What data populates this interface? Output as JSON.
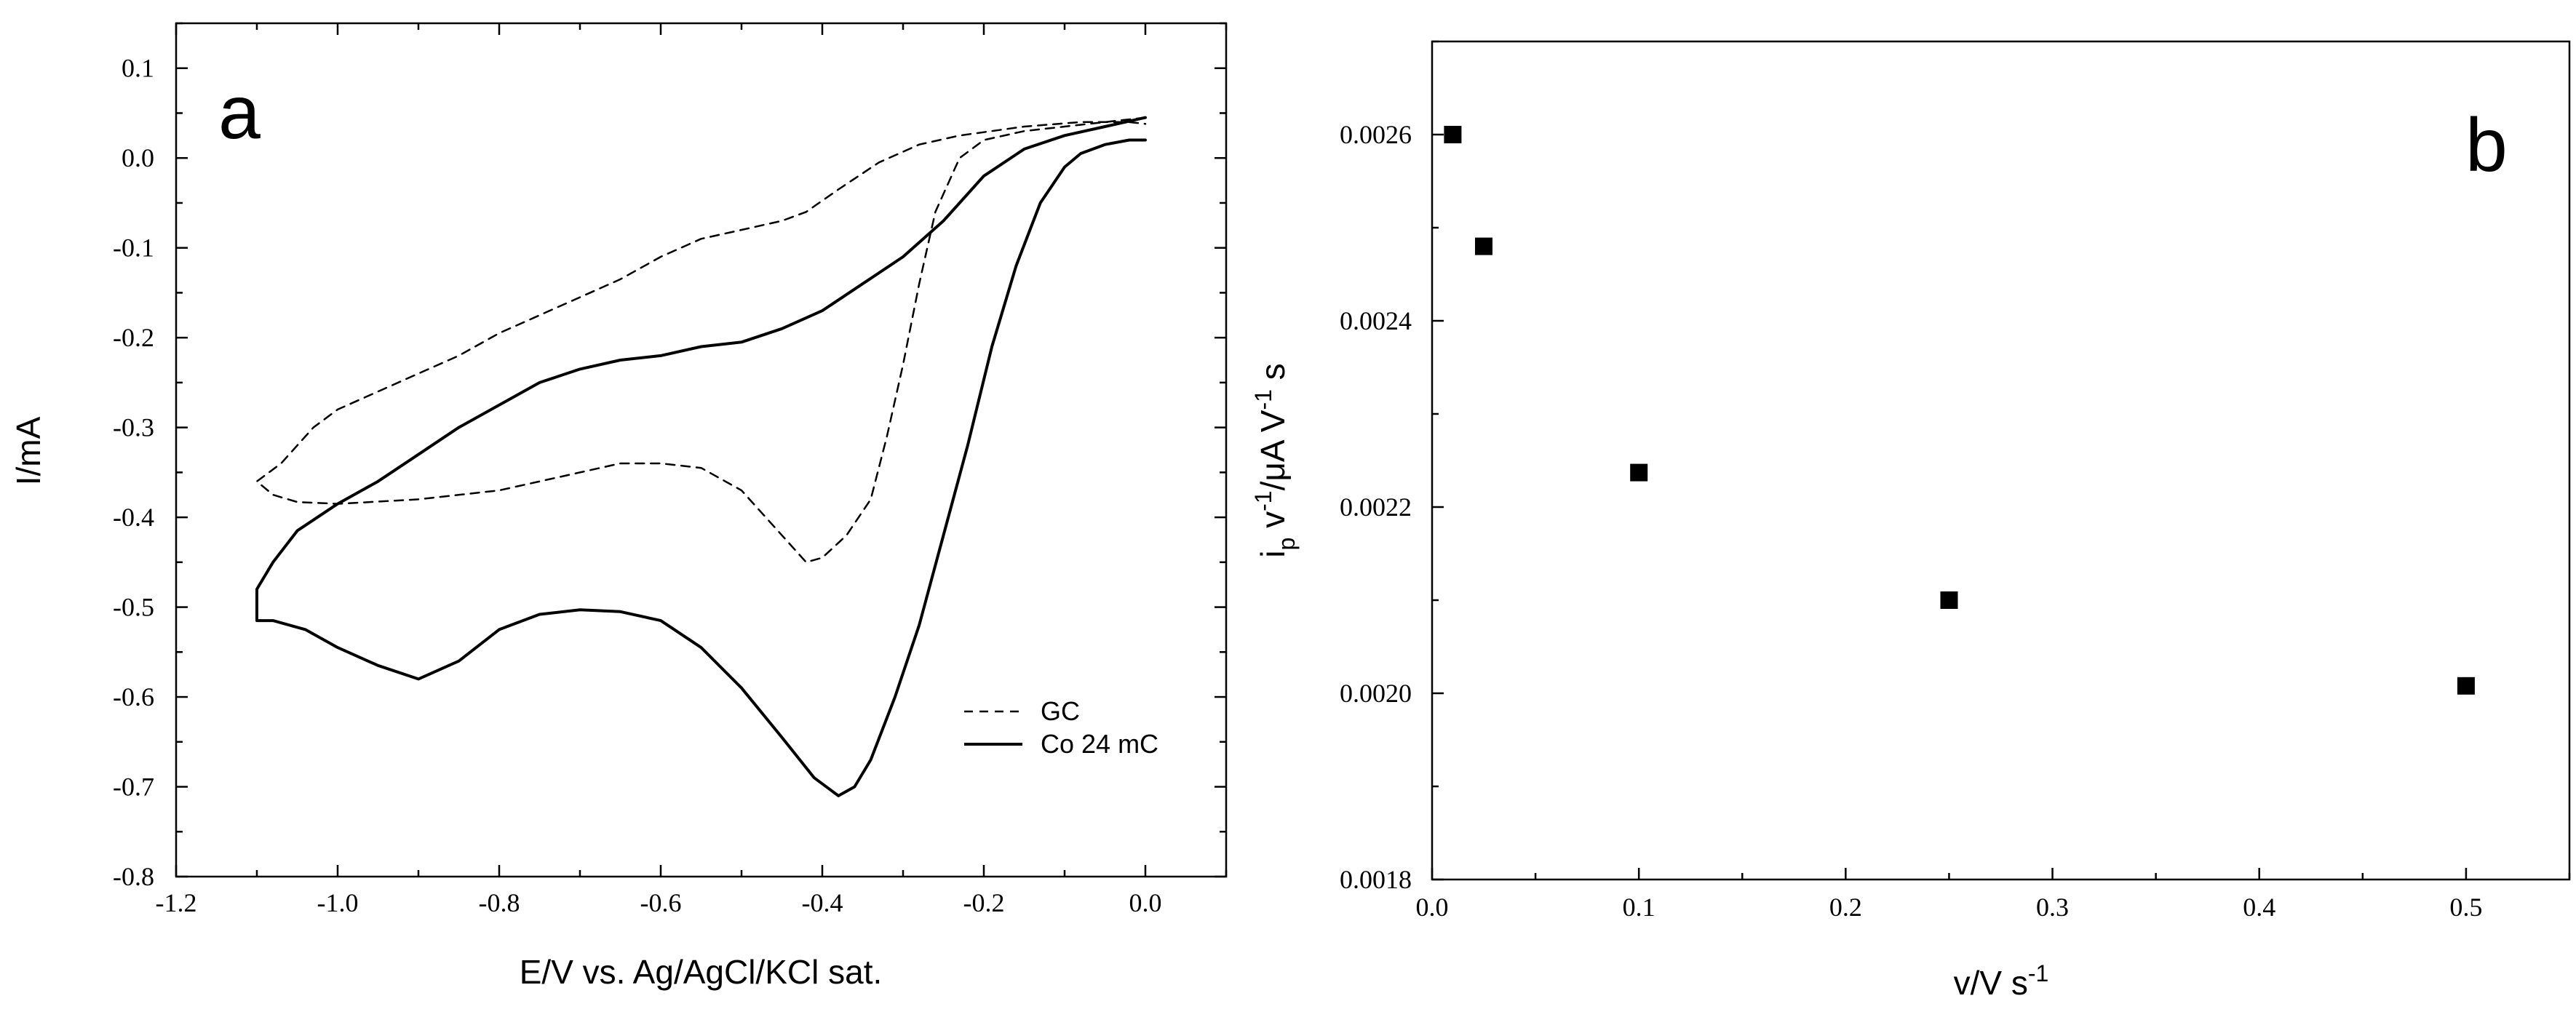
{
  "chart_data": [
    {
      "type": "line",
      "panel_label": "a",
      "xlabel": "E/V vs. Ag/AgCl/KCl sat.",
      "ylabel": "I/mA",
      "xlim": [
        -1.2,
        0.1
      ],
      "ylim": [
        -0.8,
        0.15
      ],
      "x_ticks": [
        -1.2,
        -1.0,
        -0.8,
        -0.6,
        -0.4,
        -0.2,
        0.0
      ],
      "x_tick_labels": [
        "-1.2",
        "-1.0",
        "-0.8",
        "-0.6",
        "-0.4",
        "-0.2",
        "0.0"
      ],
      "y_ticks": [
        -0.8,
        -0.7,
        -0.6,
        -0.5,
        -0.4,
        -0.3,
        -0.2,
        -0.1,
        0.0,
        0.1
      ],
      "y_tick_labels": [
        "-0.8",
        "-0.7",
        "-0.6",
        "-0.5",
        "-0.4",
        "-0.3",
        "-0.2",
        "-0.1",
        "0.0",
        "0.1"
      ],
      "legend": {
        "placement": "bottom-right",
        "entries": [
          "GC",
          "Co 24 mC"
        ]
      },
      "series": [
        {
          "name": "GC",
          "style": "dashed",
          "points": [
            [
              0.0,
              0.045
            ],
            [
              -0.05,
              0.04
            ],
            [
              -0.1,
              0.035
            ],
            [
              -0.15,
              0.03
            ],
            [
              -0.2,
              0.02
            ],
            [
              -0.23,
              0.0
            ],
            [
              -0.26,
              -0.06
            ],
            [
              -0.28,
              -0.14
            ],
            [
              -0.3,
              -0.23
            ],
            [
              -0.32,
              -0.31
            ],
            [
              -0.34,
              -0.38
            ],
            [
              -0.37,
              -0.42
            ],
            [
              -0.4,
              -0.445
            ],
            [
              -0.42,
              -0.45
            ],
            [
              -0.45,
              -0.42
            ],
            [
              -0.5,
              -0.37
            ],
            [
              -0.55,
              -0.345
            ],
            [
              -0.6,
              -0.34
            ],
            [
              -0.65,
              -0.34
            ],
            [
              -0.7,
              -0.35
            ],
            [
              -0.8,
              -0.37
            ],
            [
              -0.9,
              -0.38
            ],
            [
              -1.0,
              -0.385
            ],
            [
              -1.05,
              -0.383
            ],
            [
              -1.08,
              -0.375
            ],
            [
              -1.1,
              -0.36
            ],
            [
              -1.07,
              -0.34
            ],
            [
              -1.03,
              -0.3
            ],
            [
              -1.0,
              -0.28
            ],
            [
              -0.95,
              -0.26
            ],
            [
              -0.9,
              -0.24
            ],
            [
              -0.85,
              -0.22
            ],
            [
              -0.8,
              -0.195
            ],
            [
              -0.75,
              -0.175
            ],
            [
              -0.7,
              -0.155
            ],
            [
              -0.65,
              -0.135
            ],
            [
              -0.6,
              -0.11
            ],
            [
              -0.55,
              -0.09
            ],
            [
              -0.5,
              -0.08
            ],
            [
              -0.45,
              -0.07
            ],
            [
              -0.42,
              -0.06
            ],
            [
              -0.38,
              -0.035
            ],
            [
              -0.33,
              -0.005
            ],
            [
              -0.28,
              0.015
            ],
            [
              -0.23,
              0.025
            ],
            [
              -0.15,
              0.035
            ],
            [
              -0.08,
              0.04
            ],
            [
              -0.02,
              0.04
            ],
            [
              0.0,
              0.038
            ]
          ]
        },
        {
          "name": "Co 24 mC",
          "style": "solid",
          "points": [
            [
              0.0,
              0.02
            ],
            [
              -0.02,
              0.02
            ],
            [
              -0.05,
              0.015
            ],
            [
              -0.08,
              0.005
            ],
            [
              -0.1,
              -0.01
            ],
            [
              -0.13,
              -0.05
            ],
            [
              -0.16,
              -0.12
            ],
            [
              -0.19,
              -0.21
            ],
            [
              -0.22,
              -0.32
            ],
            [
              -0.25,
              -0.42
            ],
            [
              -0.28,
              -0.52
            ],
            [
              -0.31,
              -0.6
            ],
            [
              -0.34,
              -0.67
            ],
            [
              -0.36,
              -0.7
            ],
            [
              -0.38,
              -0.71
            ],
            [
              -0.41,
              -0.69
            ],
            [
              -0.45,
              -0.645
            ],
            [
              -0.5,
              -0.59
            ],
            [
              -0.55,
              -0.545
            ],
            [
              -0.6,
              -0.515
            ],
            [
              -0.65,
              -0.505
            ],
            [
              -0.7,
              -0.503
            ],
            [
              -0.75,
              -0.508
            ],
            [
              -0.8,
              -0.525
            ],
            [
              -0.85,
              -0.56
            ],
            [
              -0.9,
              -0.58
            ],
            [
              -0.95,
              -0.565
            ],
            [
              -1.0,
              -0.545
            ],
            [
              -1.04,
              -0.525
            ],
            [
              -1.08,
              -0.515
            ],
            [
              -1.1,
              -0.515
            ],
            [
              -1.1,
              -0.48
            ],
            [
              -1.08,
              -0.45
            ],
            [
              -1.05,
              -0.415
            ],
            [
              -1.0,
              -0.385
            ],
            [
              -0.95,
              -0.36
            ],
            [
              -0.9,
              -0.33
            ],
            [
              -0.85,
              -0.3
            ],
            [
              -0.8,
              -0.275
            ],
            [
              -0.75,
              -0.25
            ],
            [
              -0.7,
              -0.235
            ],
            [
              -0.65,
              -0.225
            ],
            [
              -0.6,
              -0.22
            ],
            [
              -0.55,
              -0.21
            ],
            [
              -0.5,
              -0.205
            ],
            [
              -0.45,
              -0.19
            ],
            [
              -0.4,
              -0.17
            ],
            [
              -0.35,
              -0.14
            ],
            [
              -0.3,
              -0.11
            ],
            [
              -0.25,
              -0.07
            ],
            [
              -0.2,
              -0.02
            ],
            [
              -0.15,
              0.01
            ],
            [
              -0.1,
              0.025
            ],
            [
              -0.05,
              0.035
            ],
            [
              0.0,
              0.045
            ]
          ]
        }
      ]
    },
    {
      "type": "scatter",
      "panel_label": "b",
      "xlabel": "v/V s",
      "xlabel_superscript": "-1",
      "ylabel_parts": {
        "i": "i",
        "i_sub": "p",
        "v": " v",
        "v_sup": "-1",
        "mid": "/μA V",
        "v2_sup": "-1",
        "end": " s"
      },
      "xlim": [
        0.0,
        0.55
      ],
      "ylim": [
        0.0018,
        0.0027
      ],
      "x_ticks": [
        0.0,
        0.1,
        0.2,
        0.3,
        0.4,
        0.5
      ],
      "x_tick_labels": [
        "0.0",
        "0.1",
        "0.2",
        "0.3",
        "0.4",
        "0.5"
      ],
      "y_ticks": [
        0.0018,
        0.002,
        0.0022,
        0.0024,
        0.0026
      ],
      "y_tick_labels": [
        "0.0018",
        "0.0020",
        "0.0022",
        "0.0024",
        "0.0026"
      ],
      "x": [
        0.01,
        0.025,
        0.1,
        0.25,
        0.5
      ],
      "y": [
        0.0026,
        0.00248,
        0.002237,
        0.0021,
        0.002008
      ]
    }
  ]
}
